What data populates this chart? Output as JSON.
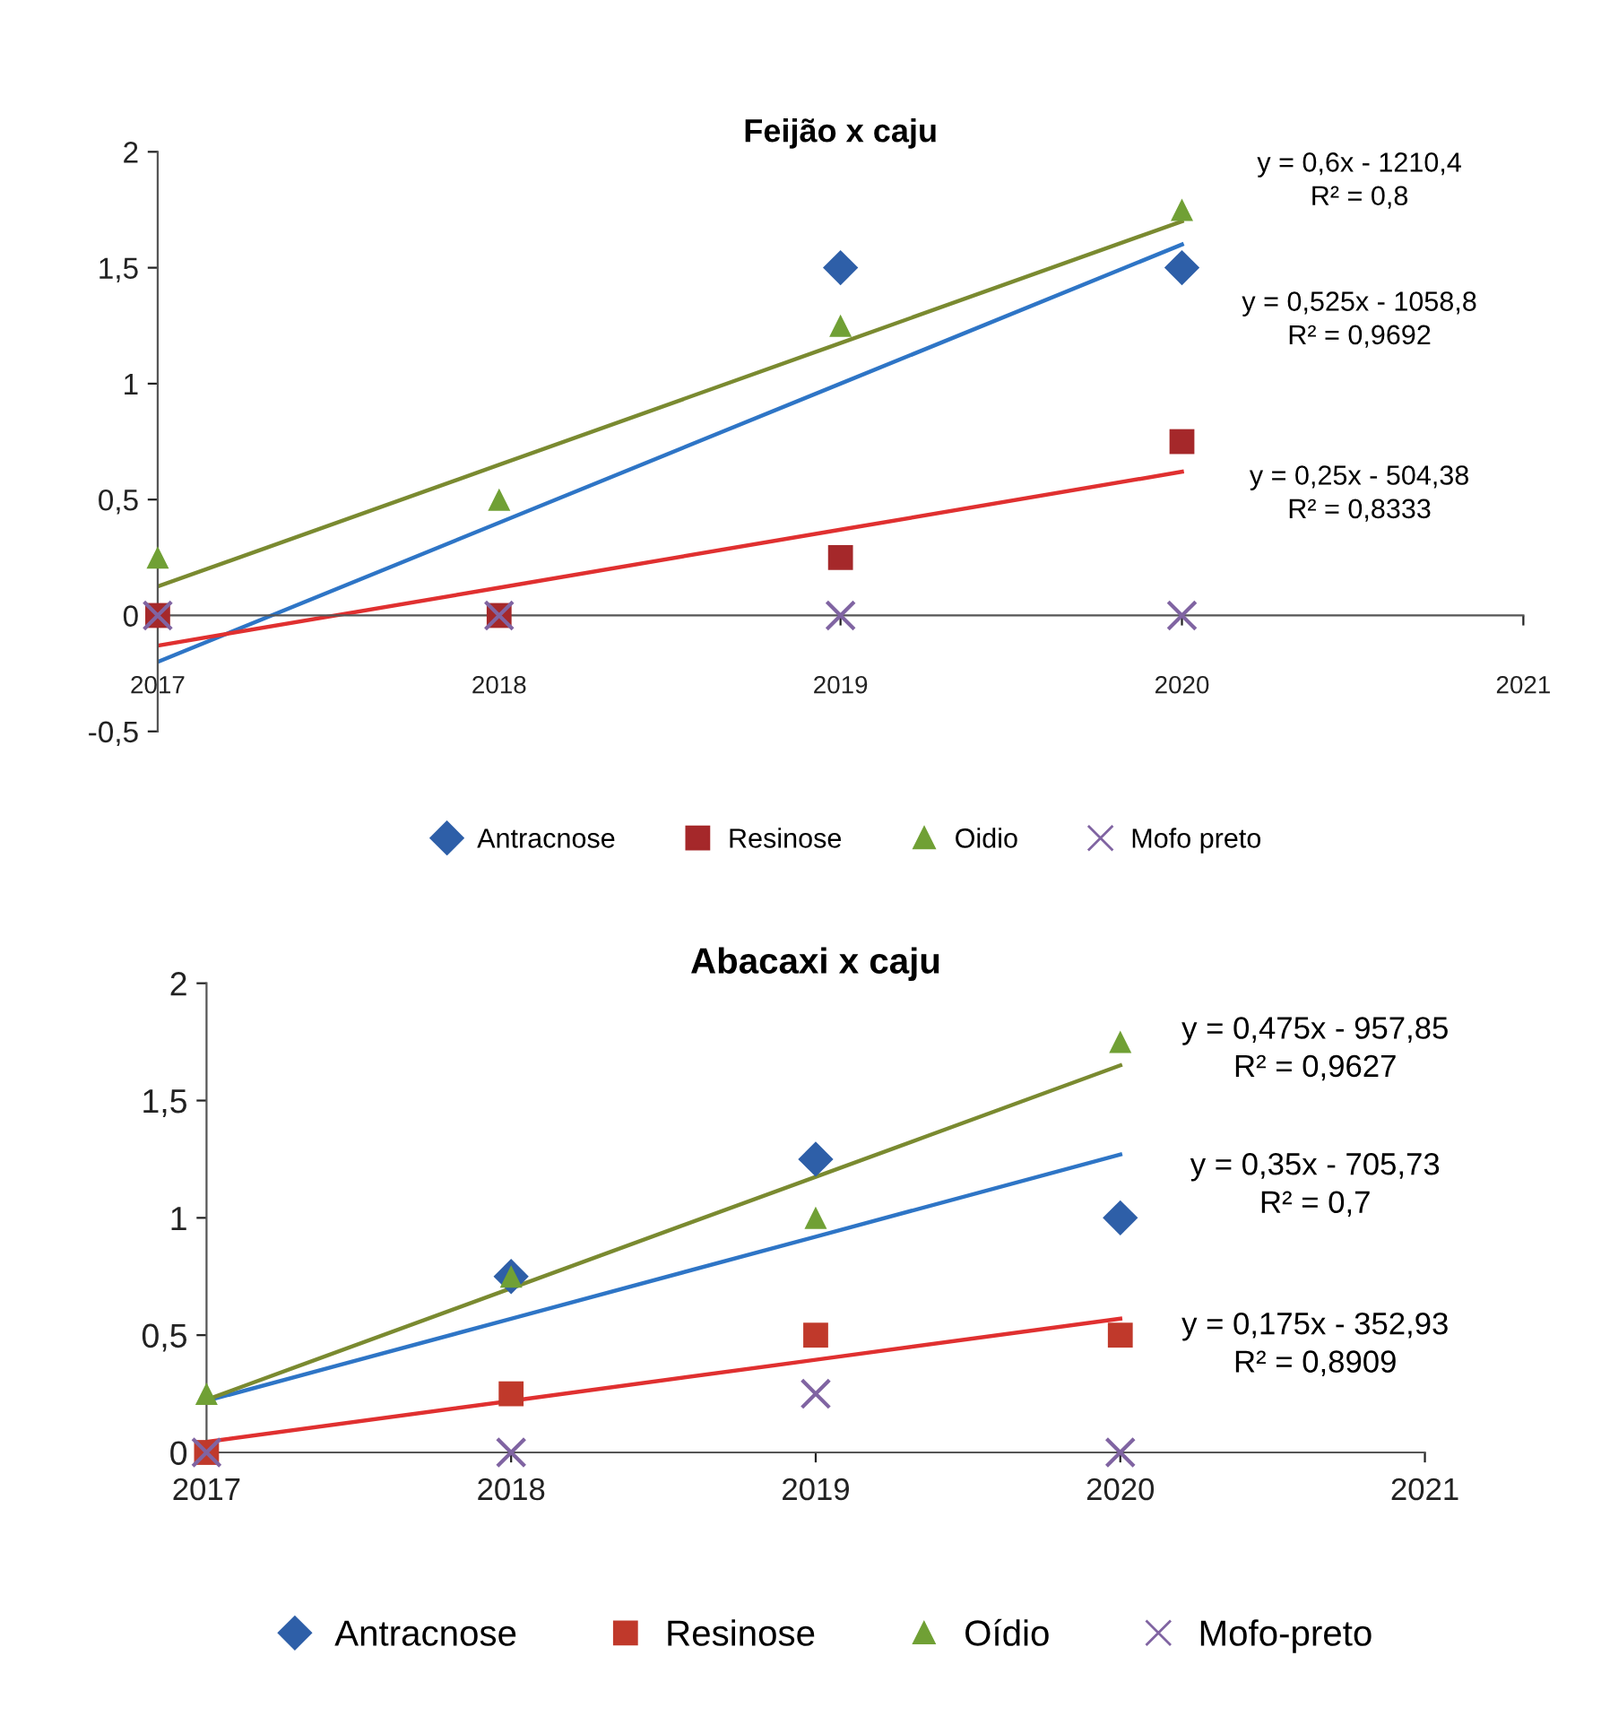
{
  "chart_data": [
    {
      "type": "scatter",
      "title": "Feijão x caju",
      "xlim": [
        2017,
        2021
      ],
      "xticks": [
        2017,
        2018,
        2019,
        2020,
        2021
      ],
      "ylim": [
        -0.5,
        2
      ],
      "yticks": [
        {
          "value": -0.5,
          "label": "-0,5"
        },
        0,
        {
          "value": 0.5,
          "label": "0,5"
        },
        1,
        {
          "value": 1.5,
          "label": "1,5"
        },
        2
      ],
      "grid": false,
      "legend": "bottom",
      "x": [
        2017,
        2018,
        2019,
        2020
      ],
      "series": [
        {
          "name": "Antracnose",
          "color": "#2e5fa8",
          "marker": "diamond",
          "values": [
            null,
            null,
            1.5,
            1.5
          ]
        },
        {
          "name": "Resinose",
          "color": "#a5282a",
          "marker": "square",
          "values": [
            0,
            0,
            0.25,
            0.75
          ]
        },
        {
          "name": "Oidio",
          "color": "#70a035",
          "marker": "triangle",
          "values": [
            0.25,
            0.5,
            1.25,
            1.75
          ]
        },
        {
          "name": "Mofo preto",
          "color": "#8064a2",
          "marker": "cross",
          "values": [
            0,
            0,
            0,
            0
          ]
        },
        {
          "type": "line",
          "color": "#2e75c6",
          "marker": "none",
          "line_style": "solid",
          "values": [
            -0.2,
            0.4,
            1.0,
            1.6
          ]
        },
        {
          "type": "line",
          "color": "#e03030",
          "marker": "none",
          "line_style": "solid",
          "values": [
            -0.13,
            0.12,
            0.37,
            0.62
          ]
        },
        {
          "type": "line",
          "color": "#7a8a30",
          "marker": "none",
          "line_style": "solid",
          "values": [
            0.125,
            0.65,
            1.175,
            1.7
          ]
        }
      ],
      "annotations": [
        "y = 0,6x - 1210,4\nR² = 0,8",
        "y = 0,525x - 1058,8\nR² = 0,9692",
        "y = 0,25x - 504,38\nR² = 0,8333"
      ]
    },
    {
      "type": "scatter",
      "title": "Abacaxi x caju",
      "xlim": [
        2017,
        2021
      ],
      "xticks": [
        2017,
        2018,
        2019,
        2020,
        2021
      ],
      "ylim": [
        0,
        2
      ],
      "yticks": [
        0,
        {
          "value": 0.5,
          "label": "0,5"
        },
        1,
        {
          "value": 1.5,
          "label": "1,5"
        },
        2
      ],
      "grid": false,
      "legend": "bottom",
      "x": [
        2017,
        2018,
        2019,
        2020
      ],
      "series": [
        {
          "name": "Antracnose",
          "color": "#2e5fa8",
          "marker": "diamond",
          "values": [
            null,
            0.75,
            1.25,
            1
          ]
        },
        {
          "name": "Resinose",
          "color": "#c0392b",
          "marker": "square",
          "values": [
            0,
            0.25,
            0.5,
            0.5
          ]
        },
        {
          "name": "Oídio",
          "color": "#70a035",
          "marker": "triangle",
          "values": [
            0.25,
            0.75,
            1,
            1.75
          ]
        },
        {
          "name": "Mofo-preto",
          "color": "#8064a2",
          "marker": "cross",
          "values": [
            0,
            0,
            0.25,
            0
          ]
        },
        {
          "type": "line",
          "color": "#2e75c6",
          "marker": "none",
          "line_style": "solid",
          "values": [
            0.22,
            0.57,
            0.92,
            1.27
          ]
        },
        {
          "type": "line",
          "color": "#e03030",
          "marker": "none",
          "line_style": "solid",
          "values": [
            0.045,
            0.22,
            0.395,
            0.57
          ]
        },
        {
          "type": "line",
          "color": "#7a8a30",
          "marker": "none",
          "line_style": "solid",
          "values": [
            0.225,
            0.7,
            1.175,
            1.65
          ]
        }
      ],
      "annotations": [
        "y = 0,475x - 957,85\nR² = 0,9627",
        "y = 0,35x - 705,73\nR² = 0,7",
        "y = 0,175x - 352,93\nR² = 0,8909"
      ]
    }
  ]
}
